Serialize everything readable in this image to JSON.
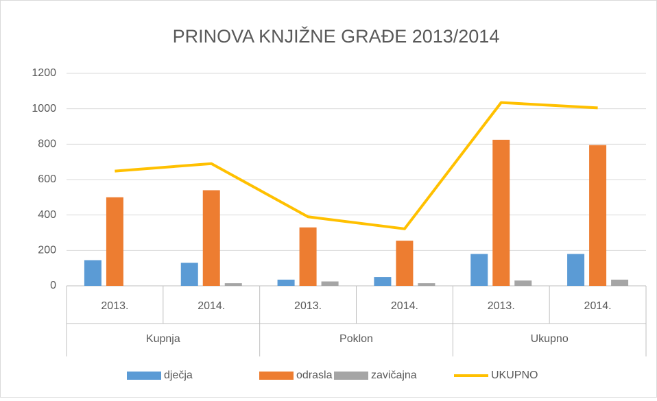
{
  "chart_data": {
    "type": "bar-line",
    "title": "PRINOVA KNJIŽNE GRAĐE 2013/2014",
    "categories": [
      "2013.",
      "2014.",
      "2013.",
      "2014.",
      "2013.",
      "2014."
    ],
    "groups": [
      "Kupnja",
      "Poklon",
      "Ukupno"
    ],
    "series": [
      {
        "name": "dječja",
        "type": "bar",
        "color": "#5b9bd5",
        "values": [
          145,
          130,
          35,
          50,
          180,
          180
        ]
      },
      {
        "name": "odrasla",
        "type": "bar",
        "color": "#ed7d31",
        "values": [
          500,
          540,
          330,
          255,
          825,
          795
        ]
      },
      {
        "name": "zavičajna",
        "type": "bar",
        "color": "#a5a5a5",
        "values": [
          0,
          15,
          25,
          15,
          30,
          35
        ]
      },
      {
        "name": "UKUPNO",
        "type": "line",
        "color": "#ffc000",
        "values": [
          648,
          690,
          390,
          322,
          1035,
          1005
        ]
      }
    ],
    "ylim": [
      0,
      1200
    ],
    "yticks": [
      0,
      200,
      400,
      600,
      800,
      1000,
      1200
    ],
    "grid": true,
    "legend": "bottom"
  }
}
